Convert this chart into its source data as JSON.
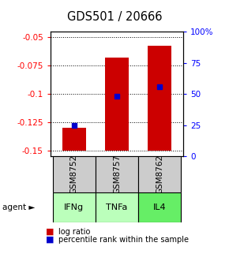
{
  "title": "GDS501 / 20666",
  "samples": [
    "GSM8752",
    "GSM8757",
    "GSM8762"
  ],
  "agents": [
    "IFNg",
    "TNFa",
    "IL4"
  ],
  "log_ratios": [
    -0.13,
    -0.068,
    -0.057
  ],
  "bar_bottom": -0.15,
  "percentile_ranks": [
    25,
    48,
    56
  ],
  "ylim_left": [
    -0.155,
    -0.045
  ],
  "ylim_right": [
    0,
    100
  ],
  "left_ticks": [
    -0.05,
    -0.075,
    -0.1,
    -0.125,
    -0.15
  ],
  "right_ticks": [
    0,
    25,
    50,
    75,
    100
  ],
  "bar_color": "#cc0000",
  "marker_color": "#0000cc",
  "agent_colors": [
    "#bbffbb",
    "#bbffbb",
    "#66ee66"
  ],
  "sample_bg": "#cccccc",
  "legend_log_color": "#cc0000",
  "legend_pct_color": "#0000cc",
  "bar_width": 0.55
}
